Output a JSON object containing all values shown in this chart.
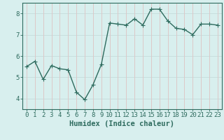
{
  "x": [
    0,
    1,
    2,
    3,
    4,
    5,
    6,
    7,
    8,
    9,
    10,
    11,
    12,
    13,
    14,
    15,
    16,
    17,
    18,
    19,
    20,
    21,
    22,
    23
  ],
  "y": [
    5.5,
    5.75,
    4.9,
    5.55,
    5.4,
    5.35,
    4.3,
    3.95,
    4.65,
    5.6,
    7.55,
    7.5,
    7.45,
    7.75,
    7.45,
    8.2,
    8.2,
    7.65,
    7.3,
    7.25,
    7.0,
    7.5,
    7.5,
    7.45
  ],
  "line_color": "#2e6b5e",
  "marker_color": "#2e6b5e",
  "bg_color": "#d8efee",
  "grid_color_h": "#c8dede",
  "grid_color_v": "#ddc8c8",
  "xlabel": "Humidex (Indice chaleur)",
  "xlim": [
    -0.5,
    23.5
  ],
  "ylim": [
    3.5,
    8.5
  ],
  "yticks": [
    4,
    5,
    6,
    7,
    8
  ],
  "xtick_labels": [
    "0",
    "1",
    "2",
    "3",
    "4",
    "5",
    "6",
    "7",
    "8",
    "9",
    "10",
    "11",
    "12",
    "13",
    "14",
    "15",
    "16",
    "17",
    "18",
    "19",
    "20",
    "21",
    "22",
    "23"
  ],
  "xlabel_fontsize": 7.5,
  "tick_fontsize": 6.5,
  "line_width": 1.0,
  "marker_size": 2.5
}
